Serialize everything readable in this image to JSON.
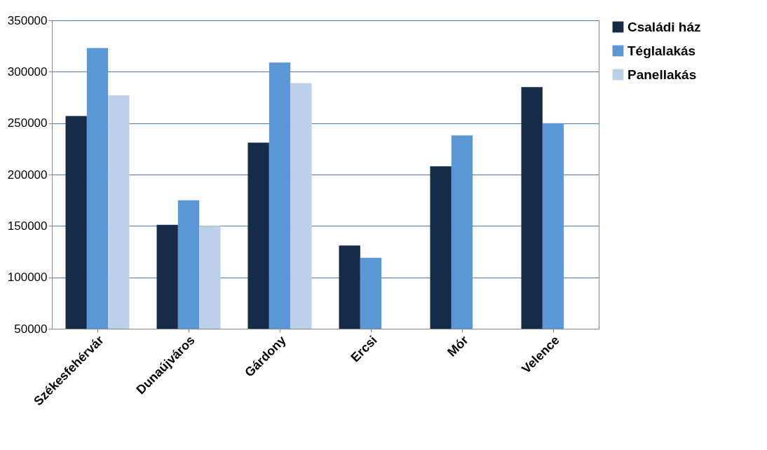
{
  "chart_data": {
    "type": "bar",
    "categories": [
      "Székesfehérvár",
      "Dunaújváros",
      "Gárdony",
      "Ercsi",
      "Mór",
      "Velence"
    ],
    "series": [
      {
        "name": "Családi ház",
        "color": "#152b47",
        "values": [
          257000,
          151000,
          231000,
          131000,
          208000,
          285000
        ]
      },
      {
        "name": "Téglalakás",
        "color": "#5b96d6",
        "values": [
          323000,
          175000,
          309000,
          119000,
          238000,
          250000
        ]
      },
      {
        "name": "Panellakás",
        "color": "#bdd0e9",
        "values": [
          277000,
          150000,
          289000,
          null,
          null,
          null
        ]
      }
    ],
    "ylim": [
      50000,
      350000
    ],
    "yticks": [
      50000,
      100000,
      150000,
      200000,
      250000,
      300000,
      350000
    ],
    "grid": "y",
    "legend": "right"
  }
}
